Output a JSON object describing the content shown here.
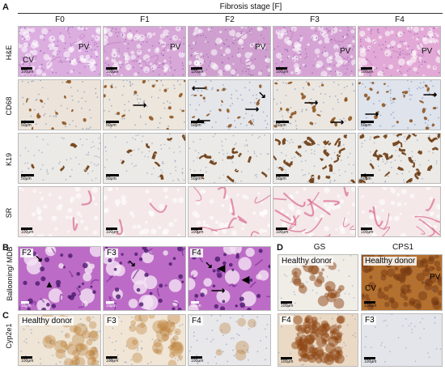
{
  "panel_A": {
    "label": "A",
    "title": "Fibrosis stage [F]",
    "columns": [
      "F0",
      "F1",
      "F2",
      "F3",
      "F4"
    ],
    "rows": [
      "H&E",
      "CD68",
      "K19",
      "SR"
    ],
    "he_labels": {
      "f0_cv": "CV",
      "f0_pv": "PV",
      "f1_pv": "PV",
      "f2_pv": "PV",
      "f3_pv": "PV",
      "f4_pv": "PV"
    },
    "scale_bars": {
      "he": "100μm",
      "cd68": "50μm",
      "k19": "50μm",
      "sr": "100μm"
    }
  },
  "panel_B": {
    "label": "B",
    "row": "Ballooning/ MDB",
    "tiles": [
      "F2",
      "F3",
      "F4"
    ],
    "scale": "10μm"
  },
  "panel_C": {
    "label": "C",
    "row": "Cyp2e1",
    "tiles": [
      "Healthy donor",
      "F3",
      "F4"
    ],
    "scale": "100μm"
  },
  "panel_D": {
    "label": "D",
    "columns": [
      "GS",
      "CPS1"
    ],
    "tiles": {
      "gs_top": "Healthy donor",
      "cps1_top": "Healthy donor",
      "gs_bottom": "F4",
      "cps1_bottom": "F3",
      "cv": "CV",
      "pv": "PV"
    },
    "scale": "100μm"
  },
  "colors": {
    "he": "#d9a2d4",
    "cd68": "#ece4da",
    "k19": "#ecebe9",
    "sr": "#f3e6e6",
    "mdb": "#b25ac0",
    "cyp2e1": "#d9a96a",
    "gs_brown": "#a6581f",
    "cps1_brown": "#9c5a24"
  }
}
